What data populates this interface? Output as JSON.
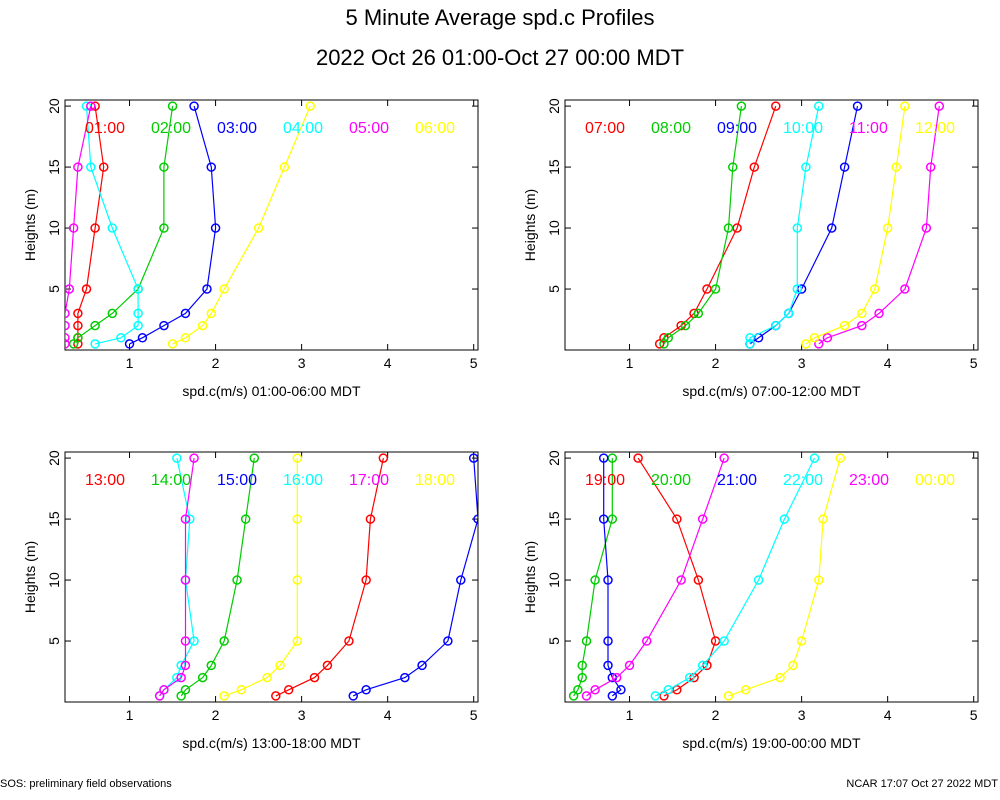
{
  "title": "5 Minute Average spd.c Profiles",
  "subtitle": "2022 Oct 26 01:00-Oct 27 00:00 MDT",
  "footer_left": "SOS: preliminary field observations",
  "footer_right": "NCAR 17:07 Oct 27 2022 MDT",
  "colors": [
    "#ff0000",
    "#00cc00",
    "#0000ff",
    "#00ffff",
    "#ff00ff",
    "#ffff00"
  ],
  "chart_data": [
    {
      "type": "line",
      "xlabel": "spd.c(m/s) 01:00-06:00 MDT",
      "ylabel": "Heights (m)",
      "xlim": [
        0.25,
        5.05
      ],
      "ylim": [
        0,
        20.5
      ],
      "x_ticks": [
        1,
        2,
        3,
        4,
        5
      ],
      "y_ticks": [
        5,
        10,
        15,
        20
      ],
      "heights": [
        0.5,
        1,
        2,
        3,
        5,
        10,
        15,
        20
      ],
      "series": [
        {
          "name": "01:00",
          "values": [
            0.4,
            0.4,
            0.4,
            0.4,
            0.5,
            0.6,
            0.7,
            0.6
          ]
        },
        {
          "name": "02:00",
          "values": [
            0.35,
            0.4,
            0.6,
            0.8,
            1.1,
            1.4,
            1.4,
            1.5
          ]
        },
        {
          "name": "03:00",
          "values": [
            1.0,
            1.15,
            1.4,
            1.65,
            1.9,
            2.0,
            1.95,
            1.75
          ]
        },
        {
          "name": "04:00",
          "values": [
            0.6,
            0.9,
            1.1,
            1.1,
            1.1,
            0.8,
            0.55,
            0.5
          ]
        },
        {
          "name": "05:00",
          "values": [
            0.25,
            0.25,
            0.25,
            0.25,
            0.3,
            0.35,
            0.4,
            0.55
          ]
        },
        {
          "name": "06:00",
          "values": [
            1.5,
            1.65,
            1.85,
            1.95,
            2.1,
            2.5,
            2.8,
            3.1
          ]
        }
      ]
    },
    {
      "type": "line",
      "xlabel": "spd.c(m/s) 07:00-12:00 MDT",
      "ylabel": "Heights (m)",
      "xlim": [
        0.25,
        5.05
      ],
      "ylim": [
        0,
        20.5
      ],
      "x_ticks": [
        1,
        2,
        3,
        4,
        5
      ],
      "y_ticks": [
        5,
        10,
        15,
        20
      ],
      "heights": [
        0.5,
        1,
        2,
        3,
        5,
        10,
        15,
        20
      ],
      "series": [
        {
          "name": "07:00",
          "values": [
            1.35,
            1.4,
            1.6,
            1.75,
            1.9,
            2.25,
            2.45,
            2.7
          ]
        },
        {
          "name": "08:00",
          "values": [
            1.4,
            1.45,
            1.65,
            1.8,
            2.0,
            2.15,
            2.2,
            2.3
          ]
        },
        {
          "name": "09:00",
          "values": [
            2.4,
            2.5,
            2.7,
            2.85,
            3.0,
            3.35,
            3.5,
            3.65
          ]
        },
        {
          "name": "10:00",
          "values": [
            2.4,
            2.4,
            2.7,
            2.85,
            2.95,
            2.95,
            3.05,
            3.2
          ]
        },
        {
          "name": "11:00",
          "values": [
            3.2,
            3.3,
            3.7,
            3.9,
            4.2,
            4.45,
            4.5,
            4.6
          ]
        },
        {
          "name": "12:00",
          "values": [
            3.05,
            3.15,
            3.5,
            3.7,
            3.85,
            4.0,
            4.1,
            4.2
          ]
        }
      ]
    },
    {
      "type": "line",
      "xlabel": "spd.c(m/s) 13:00-18:00 MDT",
      "ylabel": "Heights (m)",
      "xlim": [
        0.25,
        5.05
      ],
      "ylim": [
        0,
        20.5
      ],
      "x_ticks": [
        1,
        2,
        3,
        4,
        5
      ],
      "y_ticks": [
        5,
        10,
        15,
        20
      ],
      "heights": [
        0.5,
        1,
        2,
        3,
        5,
        10,
        15,
        20
      ],
      "series": [
        {
          "name": "13:00",
          "values": [
            2.7,
            2.85,
            3.15,
            3.3,
            3.55,
            3.75,
            3.8,
            3.95
          ]
        },
        {
          "name": "14:00",
          "values": [
            1.6,
            1.65,
            1.85,
            1.95,
            2.1,
            2.25,
            2.35,
            2.45
          ]
        },
        {
          "name": "15:00",
          "values": [
            3.6,
            3.75,
            4.2,
            4.4,
            4.7,
            4.85,
            5.05,
            5.0
          ]
        },
        {
          "name": "16:00",
          "values": [
            1.35,
            1.4,
            1.55,
            1.6,
            1.75,
            1.65,
            1.7,
            1.55
          ]
        },
        {
          "name": "17:00",
          "values": [
            1.35,
            1.4,
            1.6,
            1.65,
            1.65,
            1.65,
            1.65,
            1.75
          ]
        },
        {
          "name": "18:00",
          "values": [
            2.1,
            2.3,
            2.6,
            2.75,
            2.95,
            2.95,
            2.95,
            2.95
          ]
        }
      ]
    },
    {
      "type": "line",
      "xlabel": "spd.c(m/s) 19:00-00:00 MDT",
      "ylabel": "Heights (m)",
      "xlim": [
        0.25,
        5.05
      ],
      "ylim": [
        0,
        20.5
      ],
      "x_ticks": [
        1,
        2,
        3,
        4,
        5
      ],
      "y_ticks": [
        5,
        10,
        15,
        20
      ],
      "heights": [
        0.5,
        1,
        2,
        3,
        5,
        10,
        15,
        20
      ],
      "series": [
        {
          "name": "19:00",
          "values": [
            1.4,
            1.55,
            1.75,
            1.9,
            2.0,
            1.8,
            1.55,
            1.1
          ]
        },
        {
          "name": "20:00",
          "values": [
            0.35,
            0.4,
            0.45,
            0.45,
            0.5,
            0.6,
            0.8,
            0.8
          ]
        },
        {
          "name": "21:00",
          "values": [
            0.8,
            0.9,
            0.8,
            0.75,
            0.75,
            0.75,
            0.7,
            0.7
          ]
        },
        {
          "name": "22:00",
          "values": [
            1.3,
            1.45,
            1.7,
            1.85,
            2.1,
            2.5,
            2.8,
            3.15
          ]
        },
        {
          "name": "23:00",
          "values": [
            0.5,
            0.6,
            0.85,
            1.0,
            1.2,
            1.6,
            1.85,
            2.1
          ]
        },
        {
          "name": "00:00",
          "values": [
            2.15,
            2.35,
            2.75,
            2.9,
            3.0,
            3.2,
            3.25,
            3.45
          ]
        }
      ]
    }
  ]
}
